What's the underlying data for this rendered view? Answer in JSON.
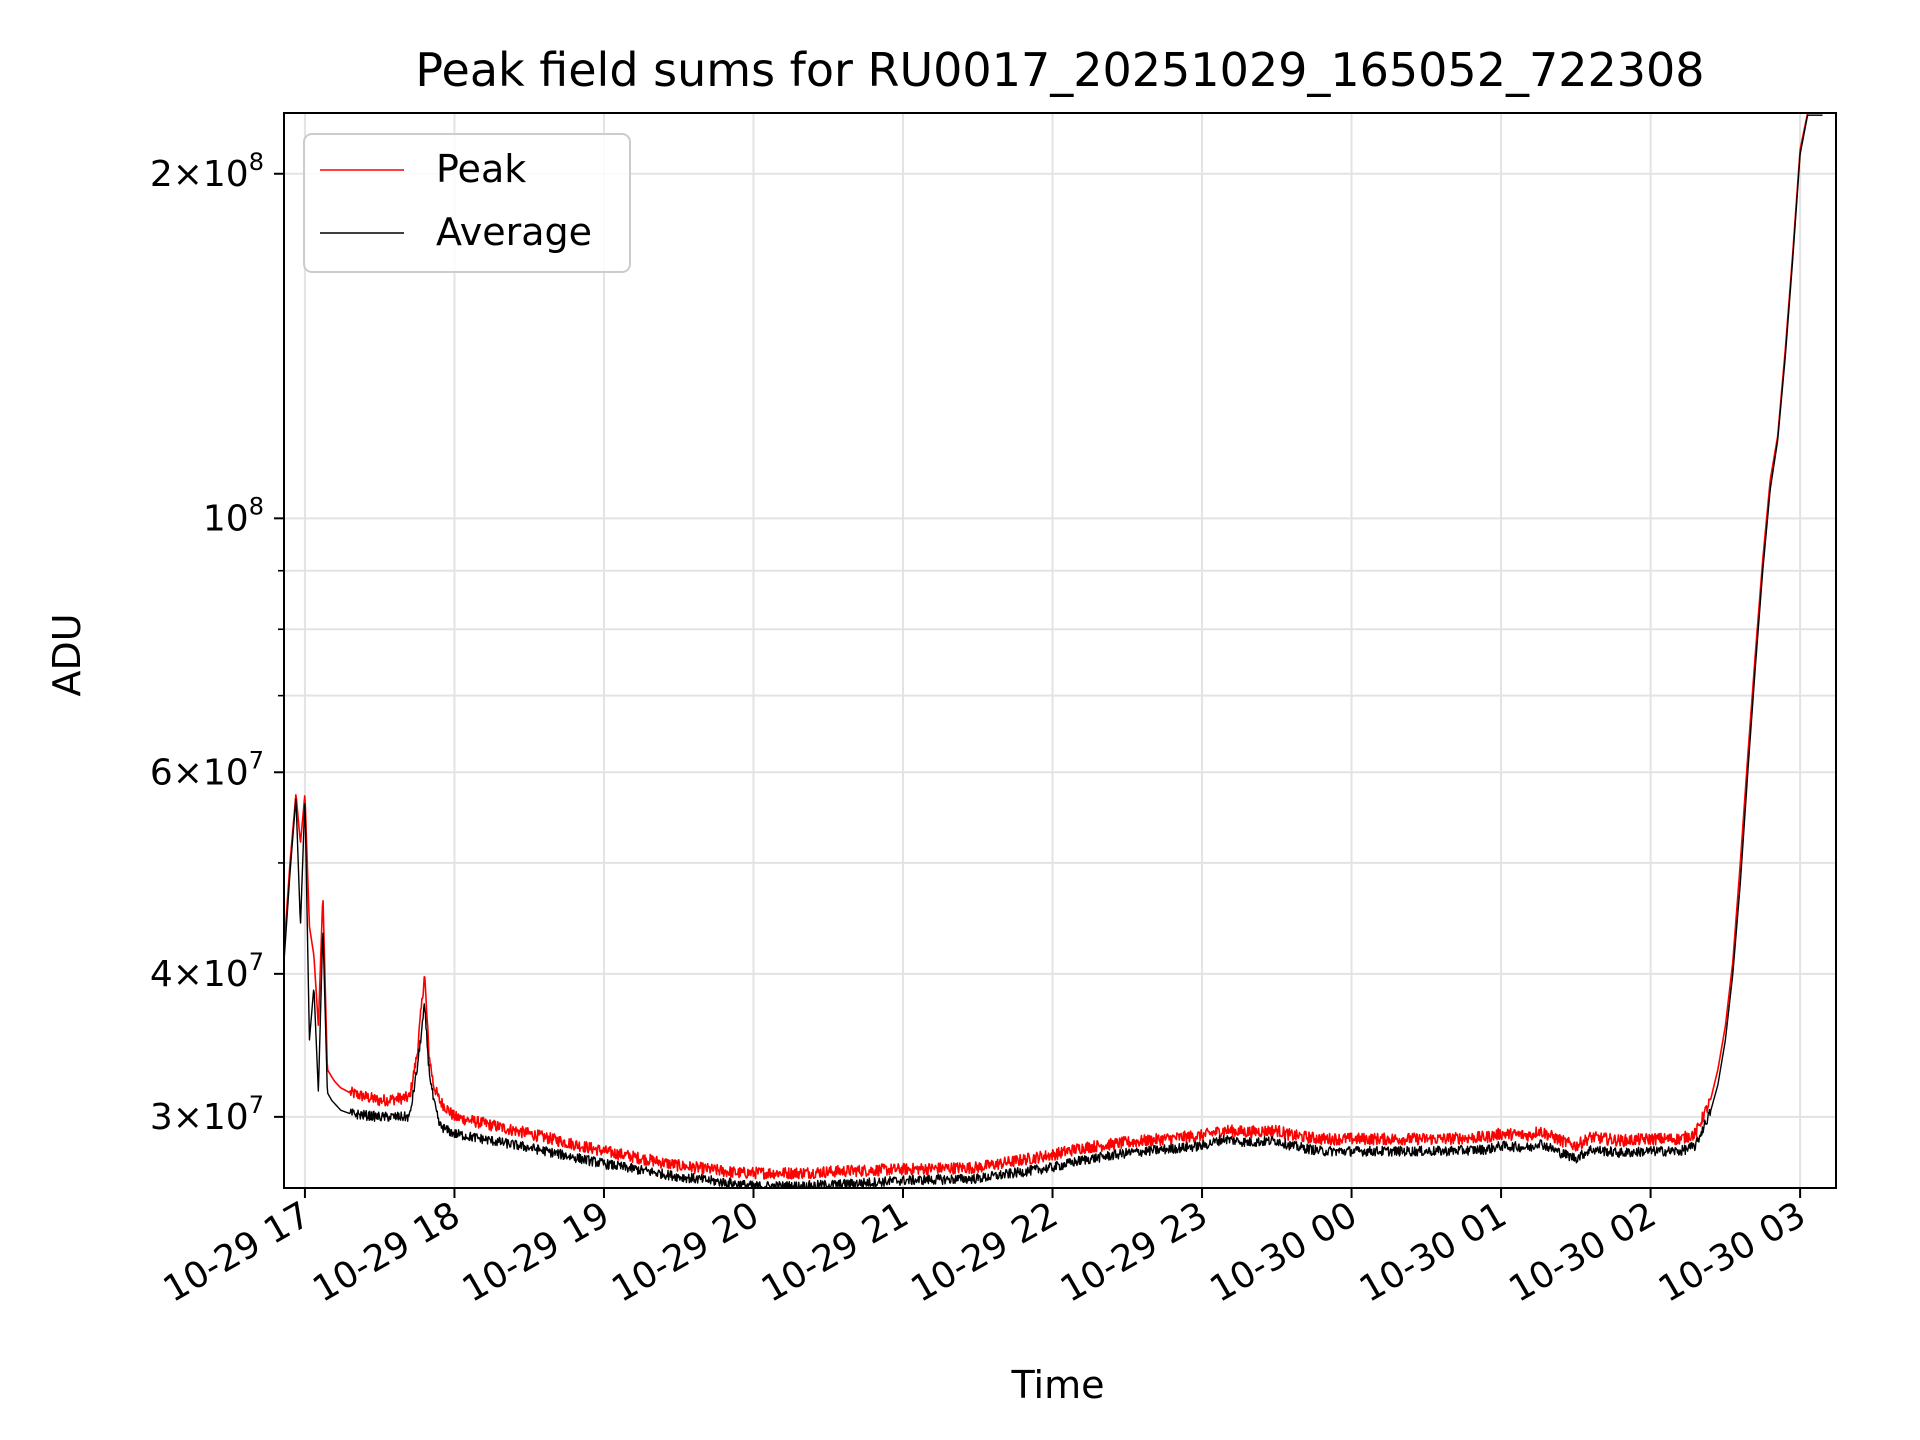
{
  "chart_data": {
    "type": "line",
    "title": "Peak field sums for RU0017_20251029_165052_722308",
    "xlabel": "Time",
    "ylabel": "ADU",
    "yscale": "log",
    "grid": true,
    "ylim": [
      26000000,
      226000000
    ],
    "xlim_hours": [
      -0.14,
      10.24
    ],
    "x_ticks": [
      {
        "hour": 0,
        "label": "10-29 17"
      },
      {
        "hour": 1,
        "label": "10-29 18"
      },
      {
        "hour": 2,
        "label": "10-29 19"
      },
      {
        "hour": 3,
        "label": "10-29 20"
      },
      {
        "hour": 4,
        "label": "10-29 21"
      },
      {
        "hour": 5,
        "label": "10-29 22"
      },
      {
        "hour": 6,
        "label": "10-29 23"
      },
      {
        "hour": 7,
        "label": "10-30 00"
      },
      {
        "hour": 8,
        "label": "10-30 01"
      },
      {
        "hour": 9,
        "label": "10-30 02"
      },
      {
        "hour": 10,
        "label": "10-30 03"
      }
    ],
    "y_ticks": [
      {
        "value": 30000000,
        "mantissa": "3",
        "exponent": "7"
      },
      {
        "value": 40000000,
        "mantissa": "4",
        "exponent": "7"
      },
      {
        "value": 60000000,
        "mantissa": "6",
        "exponent": "7"
      },
      {
        "value": 100000000,
        "mantissa": "",
        "exponent": "8"
      },
      {
        "value": 200000000,
        "mantissa": "2",
        "exponent": "8"
      }
    ],
    "y_minor_ticks": [
      50000000,
      70000000,
      80000000,
      90000000
    ],
    "legend": {
      "position": "top-left"
    },
    "x_units": "hours after 2025-10-29 17:00",
    "series": [
      {
        "name": "Peak",
        "color": "#ff0000",
        "x": [
          -0.14,
          -0.1,
          -0.06,
          -0.03,
          0.0,
          0.03,
          0.06,
          0.09,
          0.12,
          0.15,
          0.18,
          0.2,
          0.22,
          0.24,
          0.3,
          0.5,
          0.7,
          0.75,
          0.8,
          0.83,
          0.86,
          0.9,
          0.95,
          1.0,
          1.5,
          2.0,
          2.5,
          2.9,
          3.0,
          3.3,
          3.6,
          4.0,
          4.5,
          5.0,
          5.2,
          5.5,
          6.0,
          6.15,
          6.3,
          6.5,
          6.6,
          6.8,
          7.0,
          7.3,
          7.6,
          7.9,
          8.0,
          8.2,
          8.25,
          8.4,
          8.5,
          8.6,
          8.8,
          9.0,
          9.2,
          9.3,
          9.35,
          9.4,
          9.45,
          9.5,
          9.55,
          9.6,
          9.65,
          9.7,
          9.75,
          9.8,
          9.85,
          9.9,
          9.95,
          10.0,
          10.05,
          10.15
        ],
        "y": [
          42000000,
          50000000,
          57500000,
          52000000,
          57500000,
          44000000,
          41500000,
          36000000,
          47000000,
          33000000,
          32500000,
          32200000,
          32000000,
          31800000,
          31500000,
          31000000,
          31200000,
          34000000,
          40000000,
          34000000,
          32000000,
          31000000,
          30500000,
          30000000,
          29000000,
          28000000,
          27200000,
          26800000,
          26800000,
          26800000,
          26900000,
          27000000,
          27100000,
          27800000,
          28200000,
          28500000,
          28900000,
          29200000,
          29100000,
          29200000,
          28900000,
          28700000,
          28700000,
          28700000,
          28700000,
          28800000,
          29000000,
          28900000,
          29200000,
          28600000,
          28300000,
          28800000,
          28600000,
          28700000,
          28700000,
          29000000,
          30000000,
          31000000,
          33000000,
          36000000,
          41000000,
          50000000,
          62000000,
          76000000,
          92000000,
          108000000,
          118000000,
          140000000,
          170000000,
          210000000,
          226000000,
          226000000
        ]
      },
      {
        "name": "Average",
        "color": "#000000",
        "x": [
          -0.14,
          -0.1,
          -0.06,
          -0.03,
          0.0,
          0.03,
          0.06,
          0.09,
          0.12,
          0.15,
          0.18,
          0.2,
          0.22,
          0.24,
          0.3,
          0.5,
          0.7,
          0.75,
          0.8,
          0.83,
          0.86,
          0.9,
          0.95,
          1.0,
          1.5,
          2.0,
          2.5,
          2.9,
          3.0,
          3.3,
          3.6,
          4.0,
          4.5,
          5.0,
          5.2,
          5.5,
          6.0,
          6.15,
          6.3,
          6.5,
          6.6,
          6.8,
          7.0,
          7.3,
          7.6,
          7.9,
          8.0,
          8.2,
          8.25,
          8.4,
          8.5,
          8.6,
          8.8,
          9.0,
          9.2,
          9.3,
          9.35,
          9.4,
          9.45,
          9.5,
          9.55,
          9.6,
          9.65,
          9.7,
          9.75,
          9.8,
          9.85,
          9.9,
          9.95,
          10.0,
          10.05,
          10.15
        ],
        "y": [
          41000000,
          49000000,
          57000000,
          44000000,
          57000000,
          35000000,
          39000000,
          31500000,
          44000000,
          31500000,
          31000000,
          30800000,
          30600000,
          30400000,
          30200000,
          30000000,
          30000000,
          33000000,
          37500000,
          33000000,
          31000000,
          29500000,
          29200000,
          29000000,
          28200000,
          27300000,
          26600000,
          26200000,
          26100000,
          26100000,
          26200000,
          26400000,
          26500000,
          27100000,
          27500000,
          27900000,
          28300000,
          28700000,
          28500000,
          28600000,
          28300000,
          28000000,
          28000000,
          28000000,
          28000000,
          28100000,
          28300000,
          28200000,
          28500000,
          27900000,
          27600000,
          28100000,
          27900000,
          28000000,
          28000000,
          28300000,
          29300000,
          30300000,
          32000000,
          35000000,
          40000000,
          48000000,
          60000000,
          74000000,
          90000000,
          106000000,
          117000000,
          138000000,
          168000000,
          208000000,
          225000000,
          225000000
        ]
      }
    ]
  }
}
